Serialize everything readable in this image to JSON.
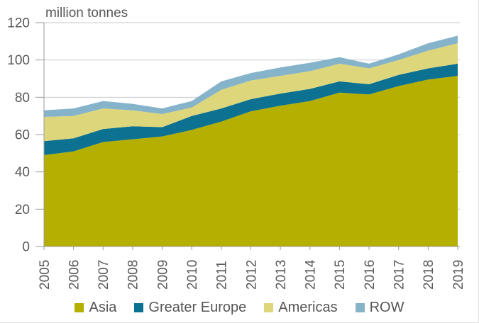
{
  "chart_data": {
    "type": "area",
    "stacked": true,
    "title": "million tonnes",
    "x": [
      "2005",
      "2006",
      "2007",
      "2008",
      "2009",
      "2010",
      "2011",
      "2012",
      "2013",
      "2014",
      "2015",
      "2016",
      "2017",
      "2018",
      "2019"
    ],
    "series": [
      {
        "name": "Asia",
        "color": "#b4af00",
        "values": [
          49,
          51,
          56,
          57.5,
          59,
          62.5,
          67,
          72.5,
          75.5,
          78,
          82.5,
          81.5,
          86,
          89.5,
          91.5
        ]
      },
      {
        "name": "Greater Europe",
        "color": "#0d7191",
        "values": [
          7.5,
          7,
          7,
          7,
          5,
          7.5,
          7,
          6.5,
          6.5,
          6.5,
          6,
          5.5,
          6,
          6,
          6.5
        ]
      },
      {
        "name": "Americas",
        "color": "#ddd67b",
        "values": [
          13,
          12,
          11,
          8.5,
          7,
          4.5,
          10,
          10,
          9.5,
          9.5,
          9.5,
          8.5,
          8,
          9.5,
          11
        ]
      },
      {
        "name": "ROW",
        "color": "#85b3c9",
        "values": [
          3.5,
          4,
          4,
          3.5,
          3,
          3.5,
          4.5,
          4,
          4.5,
          4.5,
          3.5,
          2.5,
          3,
          4,
          4
        ]
      }
    ],
    "totals": [
      73,
      74,
      78,
      76.5,
      74,
      78,
      88.5,
      93,
      96,
      98.5,
      101.5,
      98,
      103,
      109,
      113
    ],
    "ylim": [
      0,
      120
    ],
    "yticks": [
      0,
      20,
      40,
      60,
      80,
      100,
      120
    ],
    "grid": true,
    "legend_position": "bottom"
  },
  "colors": {
    "grid": "#c9c9c9",
    "axis": "#9b9b9b",
    "text": "#595959"
  }
}
